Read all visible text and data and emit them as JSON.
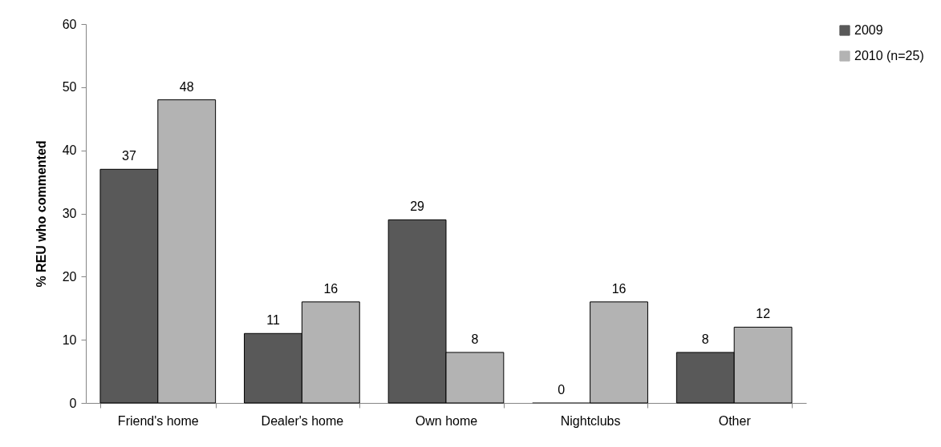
{
  "chart_data": {
    "type": "bar",
    "ylabel": "% REU who commented",
    "categories": [
      "Friend's home",
      "Dealer's home",
      "Own home",
      "Nightclubs",
      "Other"
    ],
    "series": [
      {
        "name": "2009",
        "color": "#595959",
        "values": [
          37,
          11,
          29,
          0,
          8
        ]
      },
      {
        "name": "2010 (n=25)",
        "color": "#b3b3b3",
        "values": [
          48,
          16,
          8,
          16,
          12
        ]
      }
    ],
    "ylim": [
      0,
      60
    ],
    "yticks": [
      0,
      10,
      20,
      30,
      40,
      50,
      60
    ],
    "data_labels": true,
    "legend": "right"
  }
}
